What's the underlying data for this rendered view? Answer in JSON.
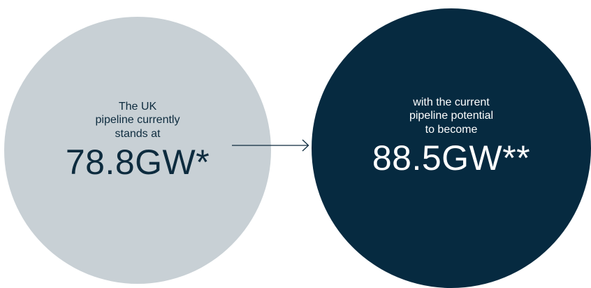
{
  "left_stat": {
    "lead": "The UK\npipeline currently\nstands at",
    "figure": "78.8GW*",
    "color": "#c8d0d5",
    "text_color": "#0d2b3e"
  },
  "right_stat": {
    "lead": "with the current\npipeline potential\nto become",
    "figure": "88.5GW**",
    "color": "#062a40",
    "text_color": "#ffffff"
  },
  "connector": {
    "icon": "arrow-right-icon",
    "color": "#0d2b3e"
  }
}
